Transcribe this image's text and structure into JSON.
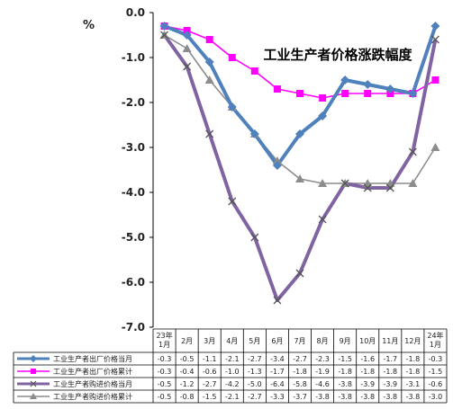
{
  "chart_data": {
    "type": "line",
    "title": "工业生产者价格涨跌幅度",
    "unit_label": "%",
    "ylim": [
      -7.0,
      0.0
    ],
    "yticks": [
      "0.0",
      "-1.0",
      "-2.0",
      "-3.0",
      "-4.0",
      "-5.0",
      "-6.0",
      "-7.0"
    ],
    "categories": [
      [
        "23年",
        "1月"
      ],
      [
        "2月"
      ],
      [
        "3月"
      ],
      [
        "4月"
      ],
      [
        "5月"
      ],
      [
        "6月"
      ],
      [
        "7月"
      ],
      [
        "8月"
      ],
      [
        "9月"
      ],
      [
        "10月"
      ],
      [
        "11月"
      ],
      [
        "12月"
      ],
      [
        "24年",
        "1月"
      ]
    ],
    "grid": false,
    "legend_placement": "data-table",
    "series": [
      {
        "name": "工业生产者出厂价格当月",
        "color": "#4F81BD",
        "marker": "diamond",
        "values": [
          -0.3,
          -0.5,
          -1.1,
          -2.1,
          -2.7,
          -3.4,
          -2.7,
          -2.3,
          -1.5,
          -1.6,
          -1.7,
          -1.8,
          -0.3
        ],
        "labels": [
          "-0.3",
          "-0.5",
          "-1.1",
          "-2.1",
          "-2.7",
          "-3.4",
          "-2.7",
          "-2.3",
          "-1.5",
          "-1.6",
          "-1.7",
          "-1.8",
          "-0.3"
        ]
      },
      {
        "name": "工业生产者出厂价格累计",
        "color": "#FF00FF",
        "marker": "square",
        "values": [
          -0.3,
          -0.4,
          -0.6,
          -1.0,
          -1.3,
          -1.7,
          -1.8,
          -1.9,
          -1.8,
          -1.8,
          -1.8,
          -1.8,
          -1.5
        ],
        "labels": [
          "-0.3",
          "-0.4",
          "-0.6",
          "-1.0",
          "-1.3",
          "-1.7",
          "-1.8",
          "-1.9",
          "-1.8",
          "-1.8",
          "-1.8",
          "-1.8",
          "-1.5"
        ]
      },
      {
        "name": "工业生产者购进价格当月",
        "color": "#8064A2",
        "marker": "x",
        "values": [
          -0.5,
          -1.2,
          -2.7,
          -4.2,
          -5.0,
          -6.4,
          -5.8,
          -4.6,
          -3.8,
          -3.9,
          -3.9,
          -3.1,
          -0.6
        ],
        "labels": [
          "-0.5",
          "-1.2",
          "-2.7",
          "-4.2",
          "-5.0",
          "-6.4",
          "-5.8",
          "-4.6",
          "-3.8",
          "-3.9",
          "-3.9",
          "-3.1",
          "-0.6"
        ]
      },
      {
        "name": "工业生产者购进价格累计",
        "color": "#8C8C8C",
        "marker": "triangle",
        "values": [
          -0.5,
          -0.8,
          -1.5,
          -2.1,
          -2.7,
          -3.3,
          -3.7,
          -3.8,
          -3.8,
          -3.8,
          -3.8,
          -3.8,
          -3.0
        ],
        "labels": [
          "-0.5",
          "-0.8",
          "-1.5",
          "-2.1",
          "-2.7",
          "-3.3",
          "-3.7",
          "-3.8",
          "-3.8",
          "-3.8",
          "-3.8",
          "-3.8",
          "-3.0"
        ]
      }
    ]
  }
}
